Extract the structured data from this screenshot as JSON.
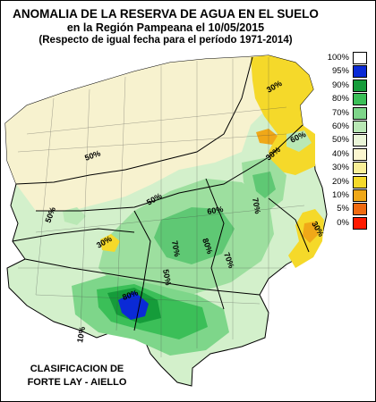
{
  "title": {
    "line1": "ANOMALIA DE LA RESERVA DE AGUA EN EL SUELO",
    "line2": "en la Región Pampeana el 10/05/2015",
    "line3": "(Respecto de igual fecha para el período 1971-2014)"
  },
  "credit": {
    "line1": "CLASIFICACION DE",
    "line2": "FORTE LAY - AIELLO"
  },
  "legend": [
    {
      "label": "100%",
      "color": "#ffffff"
    },
    {
      "label": "95%",
      "color": "#0a2ad6"
    },
    {
      "label": "90%",
      "color": "#159c3a"
    },
    {
      "label": "80%",
      "color": "#3bbf58"
    },
    {
      "label": "70%",
      "color": "#7ed68a"
    },
    {
      "label": "60%",
      "color": "#b9e8b5"
    },
    {
      "label": "50%",
      "color": "#eaf5d8"
    },
    {
      "label": "40%",
      "color": "#fbf6d0"
    },
    {
      "label": "30%",
      "color": "#f9ef98"
    },
    {
      "label": "20%",
      "color": "#f5d92a"
    },
    {
      "label": "10%",
      "color": "#f0a818"
    },
    {
      "label": "5%",
      "color": "#f06a10"
    },
    {
      "label": "0%",
      "color": "#ff1a00"
    }
  ],
  "contours": {
    "a": "50%",
    "b": "30%",
    "c": "60%",
    "d": "50%",
    "e": "50%",
    "f": "30%",
    "g": "70%",
    "h": "30%",
    "i": "70%",
    "j": "80%",
    "k": "30%",
    "l": "70%",
    "m": "80%",
    "n": "10%",
    "o": "50%",
    "p": "60%"
  }
}
